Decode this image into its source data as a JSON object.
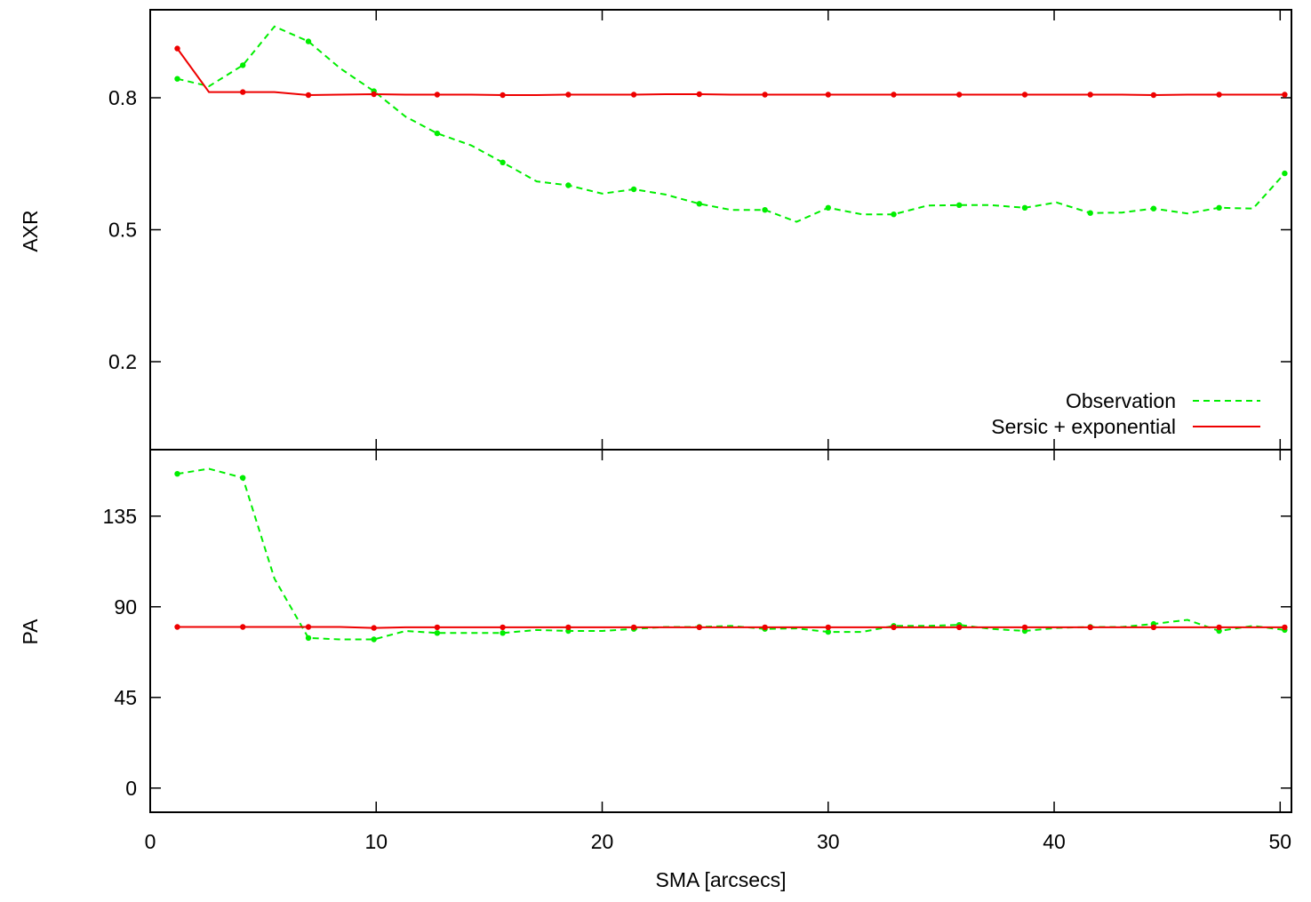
{
  "chart_data": [
    {
      "type": "line",
      "panel": "top",
      "ylabel": "AXR",
      "ylim": [
        0.0,
        1.0
      ],
      "xlim": [
        0,
        50.5
      ],
      "yticks": [
        0.8,
        0.5,
        0.2
      ],
      "ytick_labels": [
        "0.8",
        "0.5",
        "0.2"
      ],
      "legend_position": "bottom-right",
      "series": [
        {
          "name": "Observation",
          "style": "dashed",
          "color": "#00ee00",
          "x": [
            1.2,
            2.6,
            4.1,
            5.5,
            7.0,
            8.4,
            9.9,
            11.3,
            12.7,
            14.2,
            15.6,
            17.1,
            18.5,
            20.0,
            21.4,
            22.8,
            24.3,
            25.7,
            27.2,
            28.6,
            30.0,
            31.5,
            32.9,
            34.4,
            35.8,
            37.2,
            38.7,
            40.1,
            41.6,
            43.0,
            44.4,
            45.9,
            47.3,
            48.8,
            50.2
          ],
          "y": [
            0.843,
            0.826,
            0.874,
            0.962,
            0.928,
            0.867,
            0.815,
            0.757,
            0.719,
            0.692,
            0.653,
            0.61,
            0.601,
            0.582,
            0.592,
            0.58,
            0.559,
            0.545,
            0.545,
            0.518,
            0.55,
            0.535,
            0.535,
            0.555,
            0.556,
            0.556,
            0.55,
            0.562,
            0.538,
            0.539,
            0.548,
            0.537,
            0.55,
            0.548,
            0.628
          ]
        },
        {
          "name": "Sersic + exponential",
          "style": "solid",
          "color": "#ee0000",
          "x": [
            1.2,
            2.6,
            4.1,
            5.5,
            7.0,
            8.4,
            9.9,
            11.3,
            12.7,
            14.2,
            15.6,
            17.1,
            18.5,
            20.0,
            21.4,
            22.8,
            24.3,
            25.7,
            27.2,
            28.6,
            30.0,
            31.5,
            32.9,
            34.4,
            35.8,
            37.2,
            38.7,
            40.1,
            41.6,
            43.0,
            44.4,
            45.9,
            47.3,
            48.8,
            50.2
          ],
          "y": [
            0.912,
            0.813,
            0.813,
            0.813,
            0.806,
            0.807,
            0.808,
            0.807,
            0.807,
            0.807,
            0.806,
            0.806,
            0.807,
            0.807,
            0.807,
            0.808,
            0.808,
            0.807,
            0.807,
            0.807,
            0.807,
            0.807,
            0.807,
            0.807,
            0.807,
            0.807,
            0.807,
            0.807,
            0.807,
            0.807,
            0.806,
            0.807,
            0.807,
            0.807,
            0.807
          ]
        }
      ]
    },
    {
      "type": "line",
      "panel": "bottom",
      "ylabel": "PA",
      "xlabel": "SMA [arcsecs]",
      "ylim": [
        -12,
        168
      ],
      "xlim": [
        0,
        50.5
      ],
      "yticks": [
        135,
        90,
        45,
        0
      ],
      "ytick_labels": [
        "135",
        "90",
        "45",
        "0"
      ],
      "xticks": [
        0,
        10,
        20,
        30,
        40,
        50
      ],
      "xtick_labels": [
        "0",
        "10",
        "20",
        "30",
        "40",
        "50"
      ],
      "series": [
        {
          "name": "Observation",
          "style": "dashed",
          "color": "#00ee00",
          "x": [
            1.2,
            2.6,
            4.1,
            5.5,
            7.0,
            8.4,
            9.9,
            11.3,
            12.7,
            14.2,
            15.6,
            17.1,
            18.5,
            20.0,
            21.4,
            22.8,
            24.3,
            25.7,
            27.2,
            28.6,
            30.0,
            31.5,
            32.9,
            34.4,
            35.8,
            37.2,
            38.7,
            40.1,
            41.6,
            43.0,
            44.4,
            45.9,
            47.3,
            48.8,
            50.2
          ],
          "y": [
            156,
            158.5,
            154,
            104,
            74.5,
            73.8,
            73.8,
            78,
            77,
            77,
            77,
            78.5,
            78,
            78,
            79,
            80,
            80,
            80.5,
            79,
            79.3,
            77.5,
            77.5,
            80.5,
            80.5,
            81,
            79,
            78,
            79.5,
            80,
            80,
            81.5,
            83.5,
            78,
            80.5,
            78.5
          ]
        },
        {
          "name": "Sersic + exponential",
          "style": "solid",
          "color": "#ee0000",
          "x": [
            1.2,
            2.6,
            4.1,
            5.5,
            7.0,
            8.4,
            9.9,
            11.3,
            12.7,
            14.2,
            15.6,
            17.1,
            18.5,
            20.0,
            21.4,
            22.8,
            24.3,
            25.7,
            27.2,
            28.6,
            30.0,
            31.5,
            32.9,
            34.4,
            35.8,
            37.2,
            38.7,
            40.1,
            41.6,
            43.0,
            44.4,
            45.9,
            47.3,
            48.8,
            50.2
          ],
          "y": [
            80,
            80,
            80,
            80,
            80,
            80,
            79.5,
            79.8,
            79.8,
            79.8,
            79.8,
            79.8,
            79.8,
            79.8,
            79.8,
            79.8,
            79.8,
            79.8,
            79.8,
            79.8,
            79.8,
            79.8,
            79.8,
            79.8,
            79.8,
            79.8,
            79.8,
            79.8,
            79.8,
            79.8,
            79.8,
            79.8,
            79.8,
            79.8,
            79.8
          ]
        }
      ]
    }
  ],
  "colors": {
    "observation": "#00ee00",
    "model": "#ee0000",
    "axes": "#000000"
  }
}
